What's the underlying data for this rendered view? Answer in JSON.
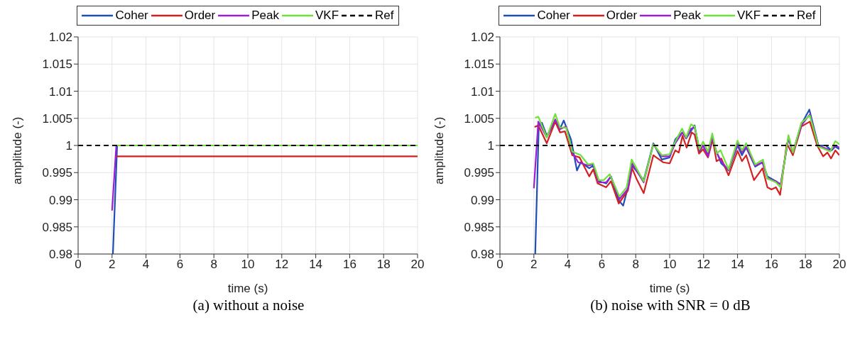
{
  "chart_data": [
    {
      "type": "line",
      "xlabel": "time (s)",
      "ylabel": "amplitude (-)",
      "annotations": [
        "(a) without a noise"
      ],
      "xlim": [
        0,
        20
      ],
      "xticks": [
        0,
        2,
        4,
        6,
        8,
        10,
        12,
        14,
        16,
        18,
        20
      ],
      "ylim": [
        0.98,
        1.02
      ],
      "yticks": [
        0.98,
        0.985,
        0.99,
        0.995,
        1,
        1.005,
        1.01,
        1.015,
        1.02
      ],
      "grid": true,
      "legend": "top",
      "series": [
        {
          "name": "Coher",
          "color": "#1f4fb4",
          "x": [
            2.05,
            2.3
          ],
          "values": [
            0.98,
            1
          ]
        },
        {
          "name": "Order",
          "color": "#d42020",
          "x": [
            2.2,
            20
          ],
          "values": [
            0.998,
            0.998
          ]
        },
        {
          "name": "Peak",
          "color": "#9b1fd6",
          "x": [
            2,
            2.25
          ],
          "values": [
            0.988,
            1
          ]
        },
        {
          "name": "VKF",
          "color": "#6ee03a",
          "x": [
            2.25,
            20
          ],
          "values": [
            1,
            1
          ]
        },
        {
          "name": "Ref",
          "color": "#000000",
          "line_style": "dashed",
          "x": [
            0,
            20
          ],
          "values": [
            1,
            1
          ]
        }
      ]
    },
    {
      "type": "line",
      "xlabel": "time (s)",
      "ylabel": "amplitude (-)",
      "annotations": [
        "(b) noise with SNR = 0 dB"
      ],
      "xlim": [
        0,
        20
      ],
      "xticks": [
        0,
        2,
        4,
        6,
        8,
        10,
        12,
        14,
        16,
        18,
        20
      ],
      "ylim": [
        0.98,
        1.02
      ],
      "yticks": [
        0.98,
        0.985,
        0.99,
        0.995,
        1,
        1.005,
        1.01,
        1.015,
        1.02
      ],
      "grid": true,
      "legend": "top",
      "series": [
        {
          "name": "Coher",
          "color": "#1f4fb4",
          "x": [
            2.08,
            2.29,
            2.47,
            2.76,
            3.26,
            3.5,
            3.76,
            4.19,
            4.54,
            4.76,
            5.26,
            5.5,
            5.83,
            6.26,
            6.54,
            7,
            7.26,
            7.54,
            7.79,
            8.47,
            9.04,
            9.54,
            10,
            10.33,
            10.54,
            10.76,
            10.97,
            11.47,
            11.76,
            11.97,
            12.26,
            12.51,
            12.73,
            13.04,
            13.47,
            14,
            14.26,
            14.51,
            15.04,
            15.47,
            15.76,
            16.26,
            16.54,
            17,
            17.26,
            17.76,
            18.23,
            18.76,
            19.19,
            19.54,
            19.76,
            20
          ],
          "values": [
            0.98,
            1.0037,
            1.0042,
            1.0018,
            1.0044,
            1.0028,
            1.0046,
            1.0011,
            0.9954,
            0.9969,
            0.9958,
            0.9963,
            0.9934,
            0.993,
            0.9943,
            0.9899,
            0.9889,
            0.9923,
            0.9963,
            0.9936,
            1.0004,
            0.9974,
            0.9978,
            1.0011,
            1.0018,
            1.0024,
            1.0013,
            1.0037,
            0.9989,
            1,
            0.9982,
            1.0013,
            0.9991,
            0.9967,
            0.9954,
            1,
            0.9982,
            0.9996,
            0.9961,
            0.9969,
            0.9943,
            0.9934,
            0.9928,
            1.0013,
            0.9987,
            1.0039,
            1.0066,
            1,
            1,
            0.9991,
            0.9998,
            0.9993
          ]
        },
        {
          "name": "Order",
          "color": "#d42020",
          "x": [
            2.04,
            2.26,
            2.76,
            3.26,
            3.54,
            3.83,
            4.26,
            4.69,
            5.26,
            5.5,
            5.76,
            6.26,
            6.54,
            7,
            7.54,
            7.79,
            8.04,
            8.47,
            9.04,
            9.61,
            10,
            10.33,
            10.54,
            10.76,
            11,
            11.3,
            11.47,
            11.73,
            11.97,
            12.26,
            12.54,
            12.76,
            13.04,
            13.47,
            14,
            14.26,
            14.51,
            14.97,
            15.47,
            15.76,
            16,
            16.26,
            16.51,
            16.9,
            17.26,
            17.76,
            18.26,
            18.69,
            19.04,
            19.3,
            19.51,
            19.76,
            20
          ],
          "values": [
            1.0034,
            1.0037,
            1.0004,
            1.0044,
            1.0024,
            1.0026,
            0.9982,
            0.9978,
            0.9943,
            0.9956,
            0.993,
            0.9923,
            0.9934,
            0.9893,
            0.9917,
            0.9958,
            0.9939,
            0.9912,
            0.9982,
            0.9969,
            0.9967,
            0.9991,
            0.9987,
            1.0018,
            0.9996,
            1.0024,
            1.002,
            0.9985,
            0.9993,
            0.9978,
            1.0011,
            0.9971,
            0.9976,
            0.9945,
            0.999,
            0.9971,
            0.9982,
            0.9936,
            0.9958,
            0.9923,
            0.9919,
            0.9923,
            0.9909,
            1.0004,
            0.9982,
            1.0035,
            1.0044,
            1,
            0.998,
            0.9987,
            0.9976,
            0.9991,
            0.9982
          ]
        },
        {
          "name": "Peak",
          "color": "#9b1fd6",
          "x": [
            2,
            2.26,
            2.76,
            3.26,
            3.54,
            3.9,
            4.26,
            4.61,
            5.19,
            5.5,
            5.83,
            6.26,
            6.54,
            7.04,
            7.54,
            7.79,
            8.47,
            9.04,
            9.54,
            10,
            10.33,
            10.76,
            10.97,
            11.26,
            11.47,
            11.76,
            11.97,
            12.26,
            12.51,
            12.76,
            13.04,
            13.47,
            14,
            14.26,
            14.51,
            15.04,
            15.47,
            15.76,
            16.26,
            16.54,
            17,
            17.26,
            17.76,
            18.26,
            18.76,
            19.47,
            19.76,
            20
          ],
          "values": [
            0.9921,
            1.0044,
            1.0015,
            1.0048,
            1.003,
            1.0035,
            0.9987,
            0.9969,
            0.9963,
            0.9965,
            0.9932,
            0.9932,
            0.9943,
            0.9901,
            0.992,
            0.9967,
            0.9932,
            1.0002,
            0.998,
            0.998,
            1.0004,
            1.0024,
            1.0013,
            1.0031,
            1.0033,
            0.9991,
            1,
            0.998,
            1.0015,
            0.9987,
            0.9971,
            0.9954,
            1.0004,
            0.9987,
            0.9998,
            0.9963,
            0.9969,
            0.9939,
            0.9934,
            0.9928,
            1.0015,
            0.9987,
            1.0037,
            1.0057,
            1,
            0.9991,
            1,
            0.9996
          ]
        },
        {
          "name": "VKF",
          "color": "#6ee03a",
          "x": [
            2.07,
            2.26,
            2.76,
            3.26,
            3.54,
            3.9,
            4.26,
            4.76,
            5.19,
            5.5,
            5.83,
            6.11,
            6.47,
            7.04,
            7.47,
            7.76,
            8.47,
            9.04,
            9.54,
            10,
            10.33,
            10.73,
            10.97,
            11.26,
            11.47,
            11.76,
            11.97,
            12.26,
            12.51,
            12.76,
            13,
            13.47,
            14,
            14.26,
            14.51,
            15.04,
            15.5,
            15.76,
            16.26,
            16.54,
            17,
            17.26,
            17.76,
            18.26,
            18.76,
            19.47,
            19.76,
            20
          ],
          "values": [
            1.0051,
            1.0053,
            1.0015,
            1.0058,
            1.0033,
            1.0033,
            0.9989,
            0.9982,
            0.9965,
            0.9967,
            0.9936,
            0.9936,
            0.9947,
            0.9906,
            0.9923,
            0.9974,
            0.9934,
            1.0002,
            0.9982,
            0.9984,
            1.0007,
            1.0031,
            1.0015,
            1.0039,
            1.0035,
            0.9993,
            1.0007,
            0.9989,
            1.0022,
            0.9985,
            0.9991,
            0.9956,
            1.0009,
            0.9991,
            1.0004,
            0.9965,
            0.9974,
            0.9939,
            0.9932,
            0.9923,
            1.0019,
            0.9987,
            1.0042,
            1.0055,
            0.9998,
            0.9989,
            1.0008,
            1.0002
          ]
        },
        {
          "name": "Ref",
          "color": "#000000",
          "line_style": "dashed",
          "x": [
            0,
            20
          ],
          "values": [
            1,
            1
          ]
        }
      ]
    }
  ]
}
